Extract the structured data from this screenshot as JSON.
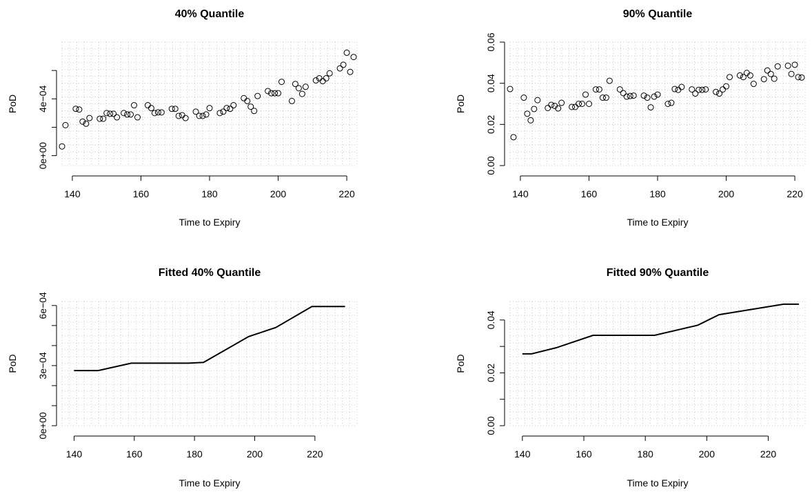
{
  "chart_data": [
    {
      "type": "scatter",
      "title": "40% Quantile",
      "xlabel": "Time to Expiry",
      "ylabel": "PoD",
      "xlim": [
        137,
        223
      ],
      "ylim": [
        -7e-05,
        0.0008
      ],
      "xticks": [
        140,
        160,
        180,
        200,
        220
      ],
      "xtick_labels": [
        "140",
        "160",
        "180",
        "200",
        "220"
      ],
      "yticks": [
        0,
        0.0002,
        0.0004,
        0.0006
      ],
      "ytick_labels": [
        "0e+00",
        "",
        "4e−04",
        ""
      ],
      "grid": true,
      "x": [
        137,
        138,
        141,
        142,
        143,
        144,
        145,
        148,
        149,
        150,
        151,
        152,
        153,
        155,
        156,
        157,
        158,
        159,
        162,
        163,
        164,
        165,
        166,
        169,
        170,
        171,
        172,
        173,
        176,
        177,
        178,
        179,
        180,
        183,
        184,
        185,
        186,
        187,
        190,
        191,
        192,
        193,
        194,
        197,
        198,
        199,
        200,
        201,
        204,
        205,
        206,
        207,
        208,
        211,
        212,
        213,
        214,
        215,
        218,
        219,
        220,
        221,
        222
      ],
      "y": [
        6.5e-05,
        0.000215,
        0.00033,
        0.000325,
        0.00024,
        0.000225,
        0.000265,
        0.00026,
        0.00026,
        0.0003,
        0.000295,
        0.000295,
        0.00027,
        0.0003,
        0.00029,
        0.00029,
        0.000355,
        0.00027,
        0.000355,
        0.000335,
        0.0003,
        0.000305,
        0.000305,
        0.00033,
        0.00033,
        0.00028,
        0.000285,
        0.000265,
        0.00031,
        0.00028,
        0.00028,
        0.00029,
        0.000335,
        0.0003,
        0.00031,
        0.000335,
        0.00033,
        0.000355,
        0.000405,
        0.000385,
        0.000345,
        0.000315,
        0.00042,
        0.000455,
        0.00044,
        0.00044,
        0.00044,
        0.00052,
        0.000385,
        0.000505,
        0.000475,
        0.000435,
        0.000485,
        0.00053,
        0.000545,
        0.000525,
        0.000545,
        0.00058,
        0.000615,
        0.00064,
        0.000725,
        0.00059,
        0.000695
      ]
    },
    {
      "type": "scatter",
      "title": "90% Quantile",
      "xlabel": "Time to Expiry",
      "ylabel": "PoD",
      "xlim": [
        137,
        223
      ],
      "ylim": [
        0,
        0.06
      ],
      "xticks": [
        140,
        160,
        180,
        200,
        220
      ],
      "xtick_labels": [
        "140",
        "160",
        "180",
        "200",
        "220"
      ],
      "yticks": [
        0,
        0.02,
        0.04,
        0.06
      ],
      "ytick_labels": [
        "0.00",
        "0.02",
        "0.04",
        "0.06"
      ],
      "grid": true,
      "x": [
        137,
        138,
        141,
        142,
        143,
        144,
        145,
        148,
        149,
        150,
        151,
        152,
        155,
        156,
        157,
        158,
        159,
        160,
        162,
        163,
        164,
        165,
        166,
        169,
        170,
        171,
        172,
        173,
        176,
        177,
        178,
        179,
        180,
        183,
        184,
        185,
        186,
        187,
        190,
        191,
        192,
        193,
        194,
        197,
        198,
        199,
        200,
        201,
        204,
        205,
        206,
        207,
        208,
        211,
        212,
        213,
        214,
        215,
        218,
        219,
        220,
        221,
        222
      ],
      "y": [
        0.0372,
        0.0138,
        0.033,
        0.0252,
        0.022,
        0.0275,
        0.0318,
        0.028,
        0.0295,
        0.029,
        0.0278,
        0.0305,
        0.0285,
        0.0285,
        0.03,
        0.03,
        0.0345,
        0.03,
        0.037,
        0.037,
        0.033,
        0.033,
        0.0412,
        0.037,
        0.0352,
        0.0335,
        0.0338,
        0.034,
        0.034,
        0.033,
        0.0283,
        0.0335,
        0.0345,
        0.03,
        0.0305,
        0.0372,
        0.0368,
        0.0382,
        0.037,
        0.035,
        0.0368,
        0.0368,
        0.037,
        0.0358,
        0.035,
        0.037,
        0.0385,
        0.043,
        0.0438,
        0.043,
        0.045,
        0.0438,
        0.0397,
        0.042,
        0.0462,
        0.0445,
        0.0422,
        0.0482,
        0.0485,
        0.0445,
        0.049,
        0.043,
        0.0428
      ]
    },
    {
      "type": "line",
      "title": "Fitted 40% Quantile",
      "xlabel": "Time to Expiry",
      "ylabel": "PoD",
      "xlim": [
        136,
        234
      ],
      "ylim": [
        0,
        0.00062
      ],
      "xticks": [
        140,
        160,
        180,
        200,
        220
      ],
      "xtick_labels": [
        "140",
        "160",
        "180",
        "200",
        "220"
      ],
      "yticks": [
        0,
        0.0001,
        0.0002,
        0.0003,
        0.0004,
        0.0005,
        0.0006
      ],
      "ytick_labels": [
        "0e+00",
        "",
        "",
        "3e−04",
        "",
        "",
        "6e−04"
      ],
      "grid": true,
      "x": [
        140,
        148,
        159,
        178,
        183,
        198,
        207,
        219,
        230
      ],
      "y": [
        0.000275,
        0.000275,
        0.000312,
        0.000312,
        0.000316,
        0.000445,
        0.00049,
        0.000595,
        0.000595
      ]
    },
    {
      "type": "line",
      "title": "Fitted 90% Quantile",
      "xlabel": "Time to Expiry",
      "ylabel": "PoD",
      "xlim": [
        136,
        232
      ],
      "ylim": [
        0,
        0.047
      ],
      "xticks": [
        140,
        160,
        180,
        200,
        220
      ],
      "xtick_labels": [
        "140",
        "160",
        "180",
        "200",
        "220"
      ],
      "yticks": [
        0,
        0.01,
        0.02,
        0.03,
        0.04
      ],
      "ytick_labels": [
        "0.00",
        "",
        "0.02",
        "",
        "0.04"
      ],
      "grid": true,
      "x": [
        140,
        143,
        151,
        163,
        183,
        197,
        204,
        225,
        230
      ],
      "y": [
        0.0272,
        0.0272,
        0.0295,
        0.0342,
        0.0342,
        0.038,
        0.042,
        0.046,
        0.046
      ]
    }
  ]
}
